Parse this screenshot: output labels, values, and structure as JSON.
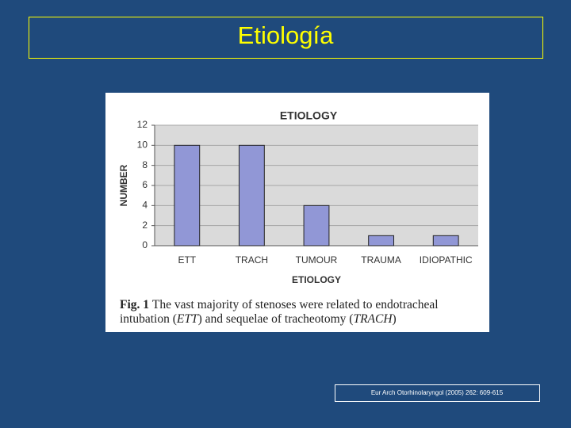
{
  "slide_title": "Etiología",
  "chart_data": {
    "type": "bar",
    "title": "ETIOLOGY",
    "ylabel": "NUMBER",
    "xlabel": "ETIOLOGY",
    "categories": [
      "ETT",
      "TRACH",
      "TUMOUR",
      "TRAUMA",
      "IDIOPATHIC"
    ],
    "values": [
      10,
      10,
      4,
      1,
      1
    ],
    "color": "#9197d6",
    "ylim": [
      0,
      12
    ],
    "yticks": [
      0,
      2,
      4,
      6,
      8,
      10,
      12
    ],
    "grid": true
  },
  "caption": {
    "label": "Fig. 1",
    "lines": [
      [
        "The vast majority of stenoses were related to endotracheal"
      ],
      [
        "intubation (",
        "ETT",
        ") and sequelae of tracheotomy (",
        "TRACH",
        ")"
      ]
    ]
  },
  "citation": "Eur Arch Otorhinolaryngol (2005) 262: 609-615"
}
